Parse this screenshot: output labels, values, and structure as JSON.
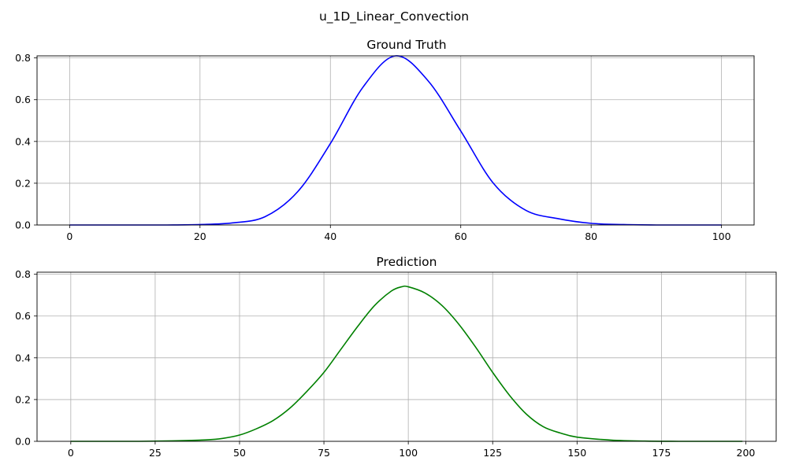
{
  "figure": {
    "suptitle": "u_1D_Linear_Convection"
  },
  "chart_data": [
    {
      "type": "line",
      "title": "Ground Truth",
      "xlabel": "",
      "ylabel": "",
      "xlim": [
        -5,
        105
      ],
      "ylim": [
        0,
        0.81
      ],
      "xticks": [
        0,
        20,
        40,
        60,
        80,
        100
      ],
      "yticks": [
        0.0,
        0.2,
        0.4,
        0.6,
        0.8
      ],
      "xtick_labels": [
        "0",
        "20",
        "40",
        "60",
        "80",
        "100"
      ],
      "ytick_labels": [
        "0.0",
        "0.2",
        "0.4",
        "0.6",
        "0.8"
      ],
      "grid": true,
      "series": [
        {
          "color": "#0000ff",
          "x": [
            0,
            5,
            10,
            15,
            20,
            25,
            30,
            35,
            40,
            45,
            50,
            55,
            60,
            65,
            70,
            75,
            80,
            85,
            90,
            95,
            100
          ],
          "values": [
            0.0,
            0.0,
            0.0,
            0.0,
            0.002,
            0.01,
            0.04,
            0.16,
            0.39,
            0.66,
            0.81,
            0.69,
            0.45,
            0.2,
            0.07,
            0.03,
            0.008,
            0.002,
            0.0,
            0.0,
            0.0
          ]
        }
      ]
    },
    {
      "type": "line",
      "title": "Prediction",
      "xlabel": "",
      "ylabel": "",
      "xlim": [
        -10,
        209
      ],
      "ylim": [
        0,
        0.81
      ],
      "xticks": [
        0,
        25,
        50,
        75,
        100,
        125,
        150,
        175,
        200
      ],
      "yticks": [
        0.0,
        0.2,
        0.4,
        0.6,
        0.8
      ],
      "xtick_labels": [
        "0",
        "25",
        "50",
        "75",
        "100",
        "125",
        "150",
        "175",
        "200"
      ],
      "ytick_labels": [
        "0.0",
        "0.2",
        "0.4",
        "0.6",
        "0.8"
      ],
      "grid": true,
      "series": [
        {
          "color": "#008000",
          "x": [
            0,
            10,
            20,
            30,
            40,
            45,
            50,
            55,
            60,
            65,
            70,
            75,
            80,
            85,
            90,
            95,
            98,
            100,
            105,
            110,
            115,
            120,
            125,
            130,
            135,
            140,
            145,
            150,
            160,
            170,
            180,
            190,
            199
          ],
          "values": [
            0.0,
            0.0,
            0.0,
            0.002,
            0.007,
            0.014,
            0.03,
            0.06,
            0.1,
            0.16,
            0.24,
            0.33,
            0.44,
            0.55,
            0.65,
            0.72,
            0.74,
            0.74,
            0.71,
            0.65,
            0.56,
            0.45,
            0.33,
            0.22,
            0.13,
            0.07,
            0.04,
            0.02,
            0.006,
            0.001,
            0.0,
            0.0,
            0.0
          ]
        }
      ]
    }
  ]
}
